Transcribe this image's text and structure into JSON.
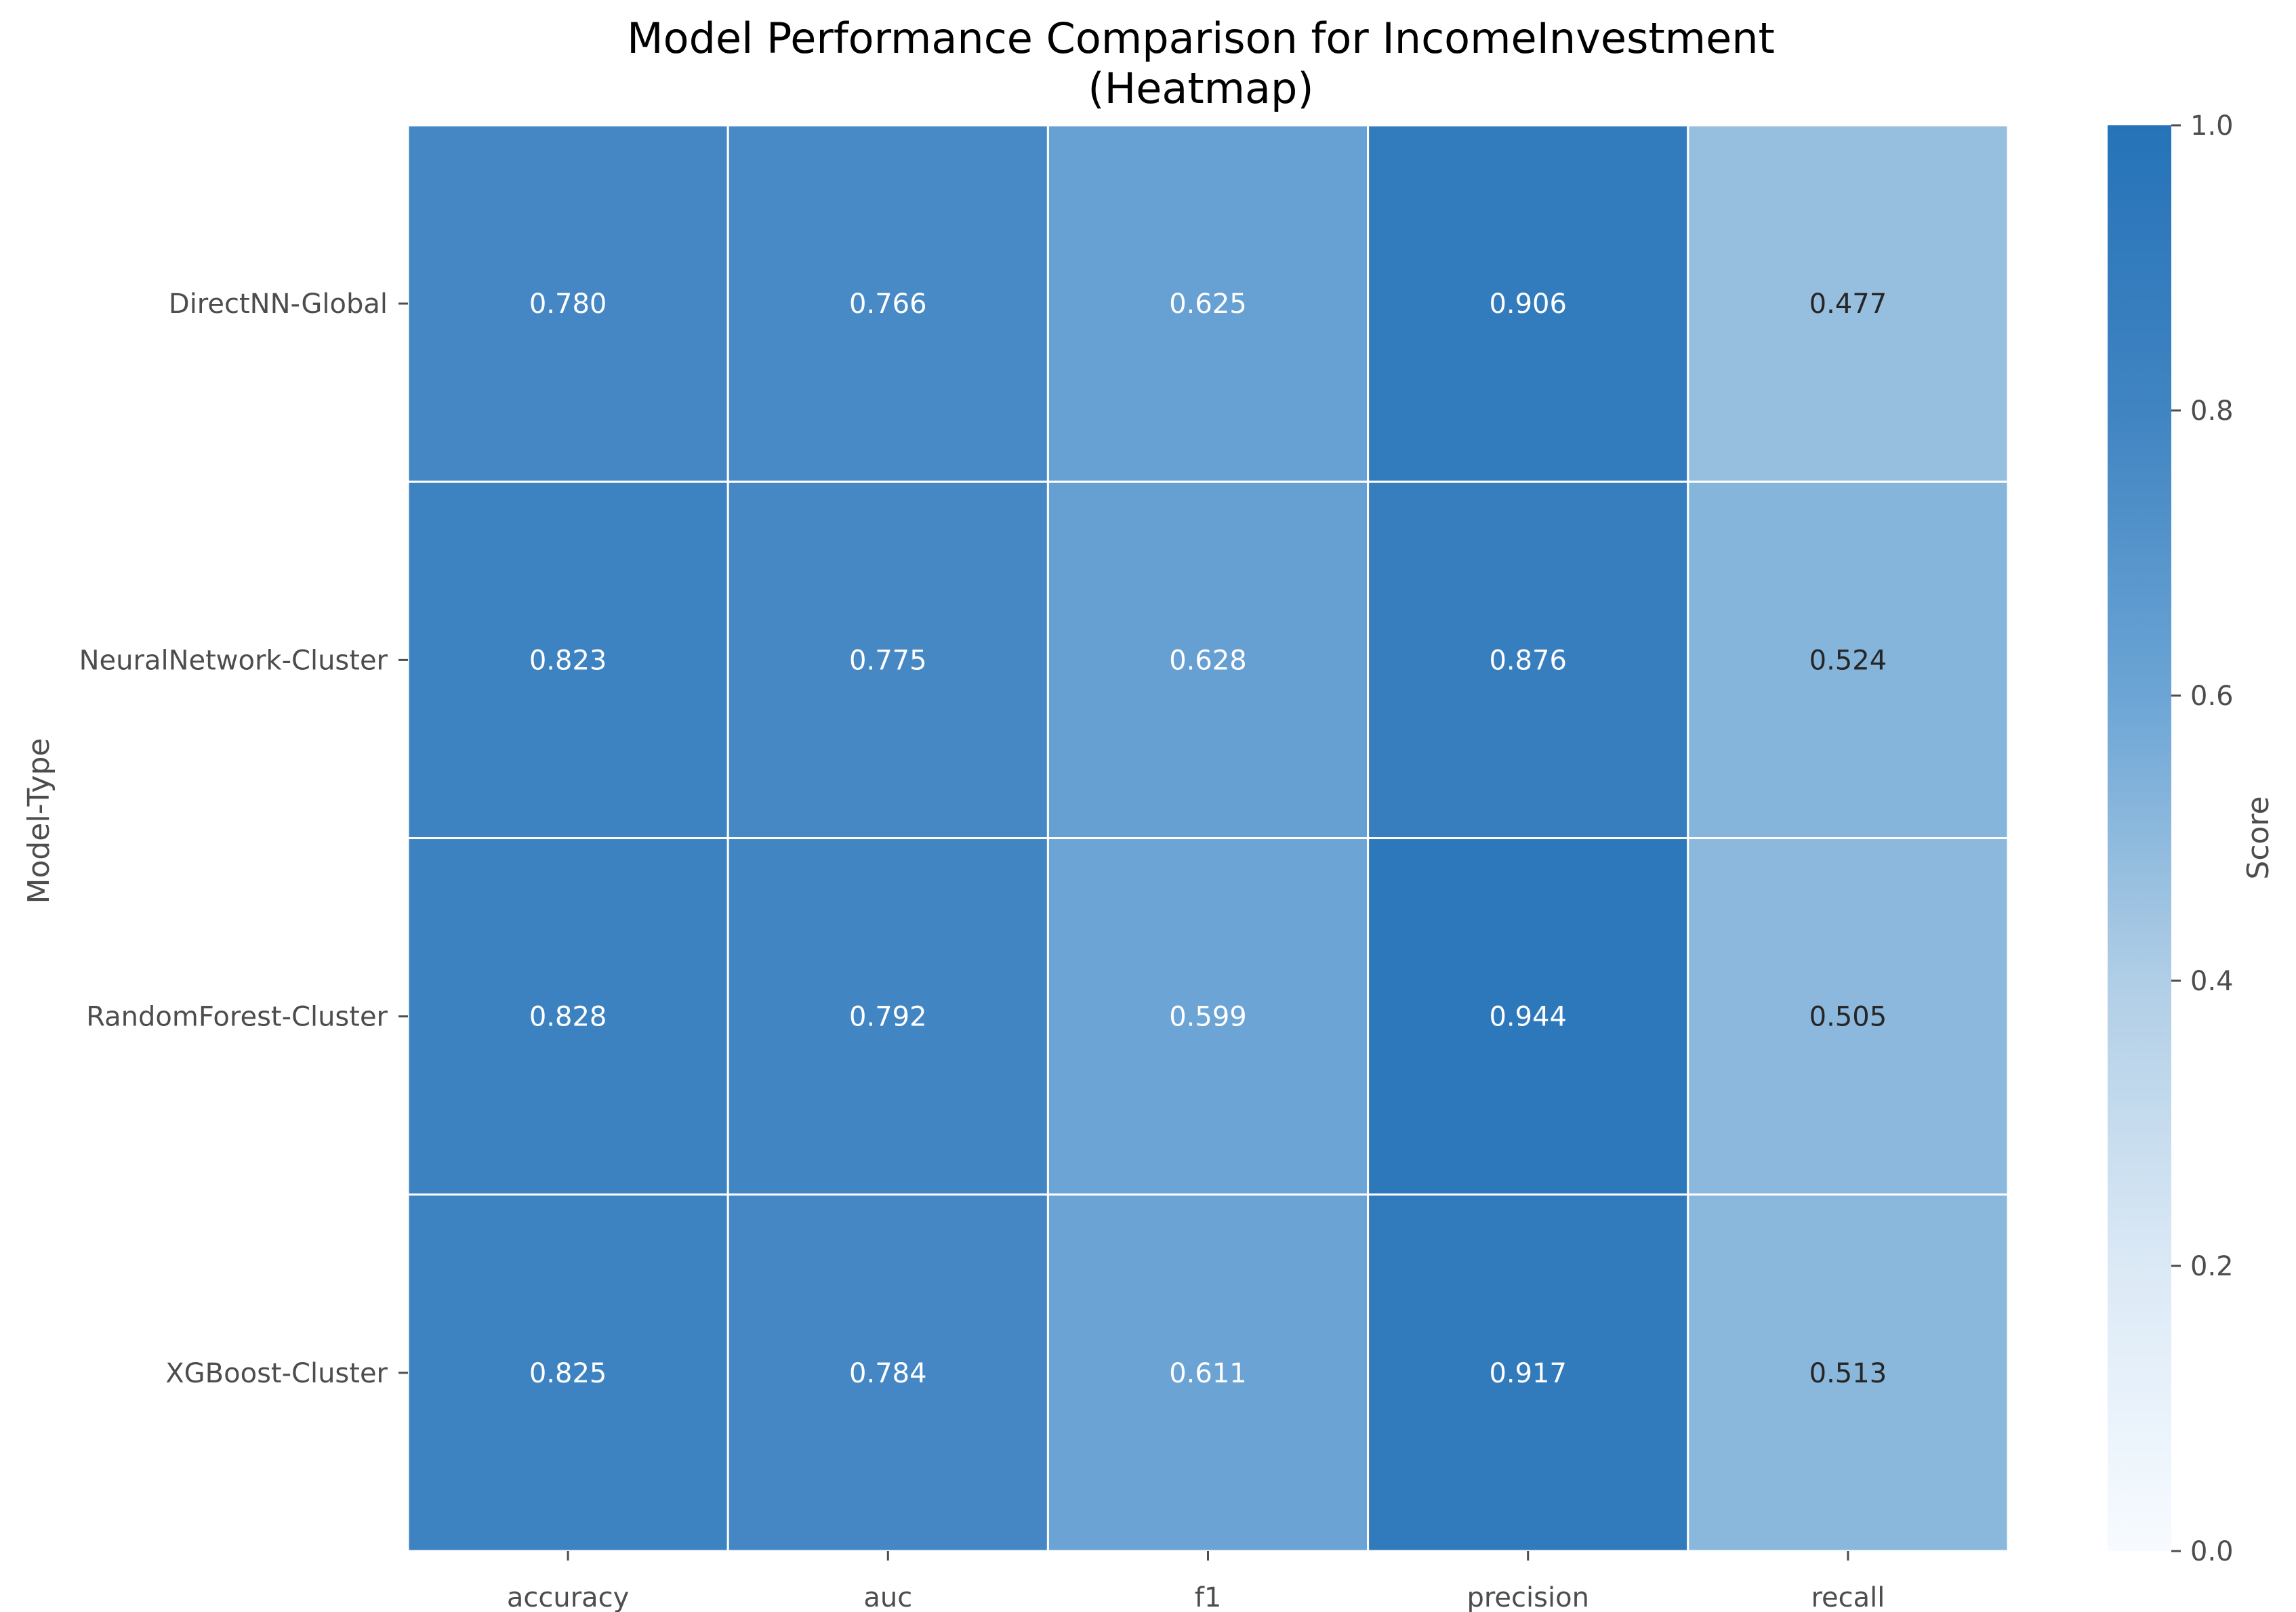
{
  "chart_data": {
    "type": "heatmap",
    "title": "Model Performance Comparison for IncomeInvestment",
    "subtitle": "(Heatmap)",
    "xlabel": "",
    "ylabel": "Model-Type",
    "columns": [
      "accuracy",
      "auc",
      "f1",
      "precision",
      "recall"
    ],
    "rows": [
      "DirectNN-Global",
      "NeuralNetwork-Cluster",
      "RandomForest-Cluster",
      "XGBoost-Cluster"
    ],
    "values": [
      [
        0.78,
        0.766,
        0.625,
        0.906,
        0.477
      ],
      [
        0.823,
        0.775,
        0.628,
        0.876,
        0.524
      ],
      [
        0.828,
        0.792,
        0.599,
        0.944,
        0.505
      ],
      [
        0.825,
        0.784,
        0.611,
        0.917,
        0.513
      ]
    ],
    "value_labels": [
      [
        "0.780",
        "0.766",
        "0.625",
        "0.906",
        "0.477"
      ],
      [
        "0.823",
        "0.775",
        "0.628",
        "0.876",
        "0.524"
      ],
      [
        "0.828",
        "0.792",
        "0.599",
        "0.944",
        "0.505"
      ],
      [
        "0.825",
        "0.784",
        "0.611",
        "0.917",
        "0.513"
      ]
    ],
    "colorbar": {
      "label": "Score",
      "range": [
        0,
        1
      ],
      "ticks": [
        "0.0",
        "0.2",
        "0.4",
        "0.6",
        "0.8",
        "1.0"
      ],
      "color_low": "#f7fbff",
      "color_high": "#2673b8"
    },
    "label_colors": {
      "dark_cell": "#ffffff",
      "light_cell": "#262626"
    },
    "grid": false
  }
}
